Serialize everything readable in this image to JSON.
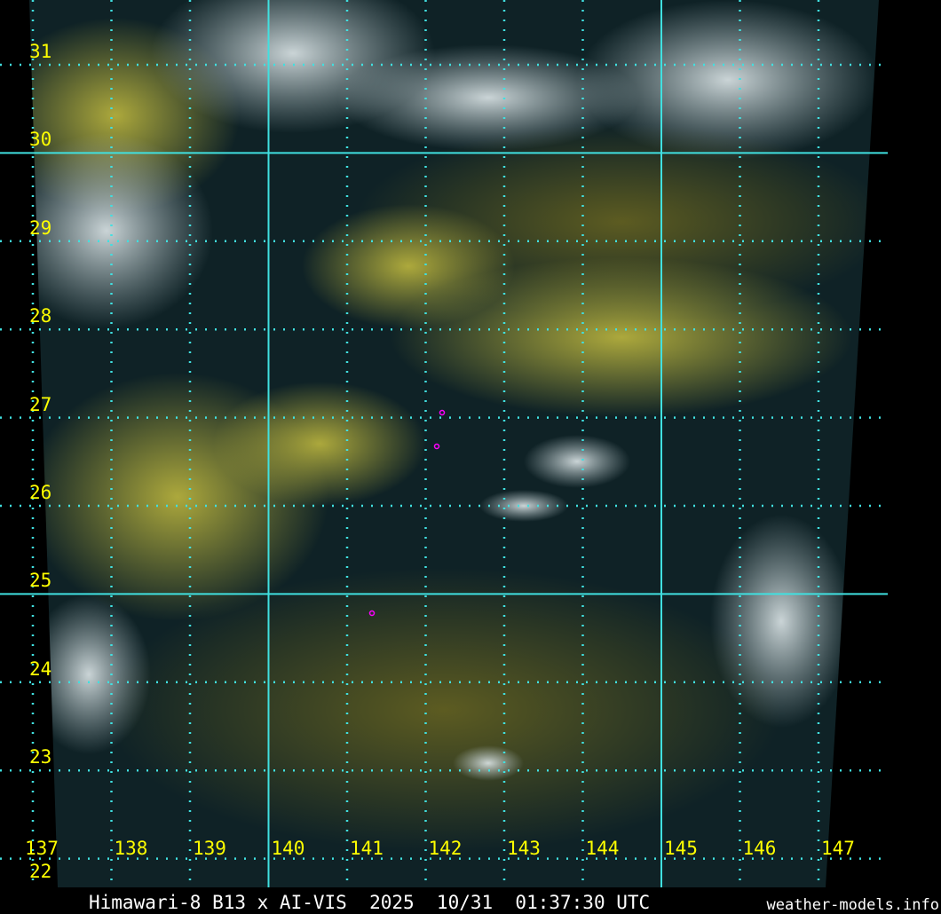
{
  "caption": "Himawari-8 B13 x AI-VIS  2025  10/31  01:37:30 UTC",
  "credit": "weather-models.info",
  "map": {
    "grid_color": "#40e0e0",
    "label_color": "#ffff00",
    "latitudes": [
      "31",
      "30",
      "29",
      "28",
      "27",
      "26",
      "25",
      "24",
      "23",
      "22"
    ],
    "longitudes": [
      "137",
      "138",
      "139",
      "140",
      "141",
      "142",
      "143",
      "144",
      "145",
      "146",
      "147"
    ],
    "major_latitudes": [
      "30",
      "25"
    ],
    "major_longitudes": [
      "140",
      "145"
    ],
    "markers_color": "#ff00ff"
  }
}
